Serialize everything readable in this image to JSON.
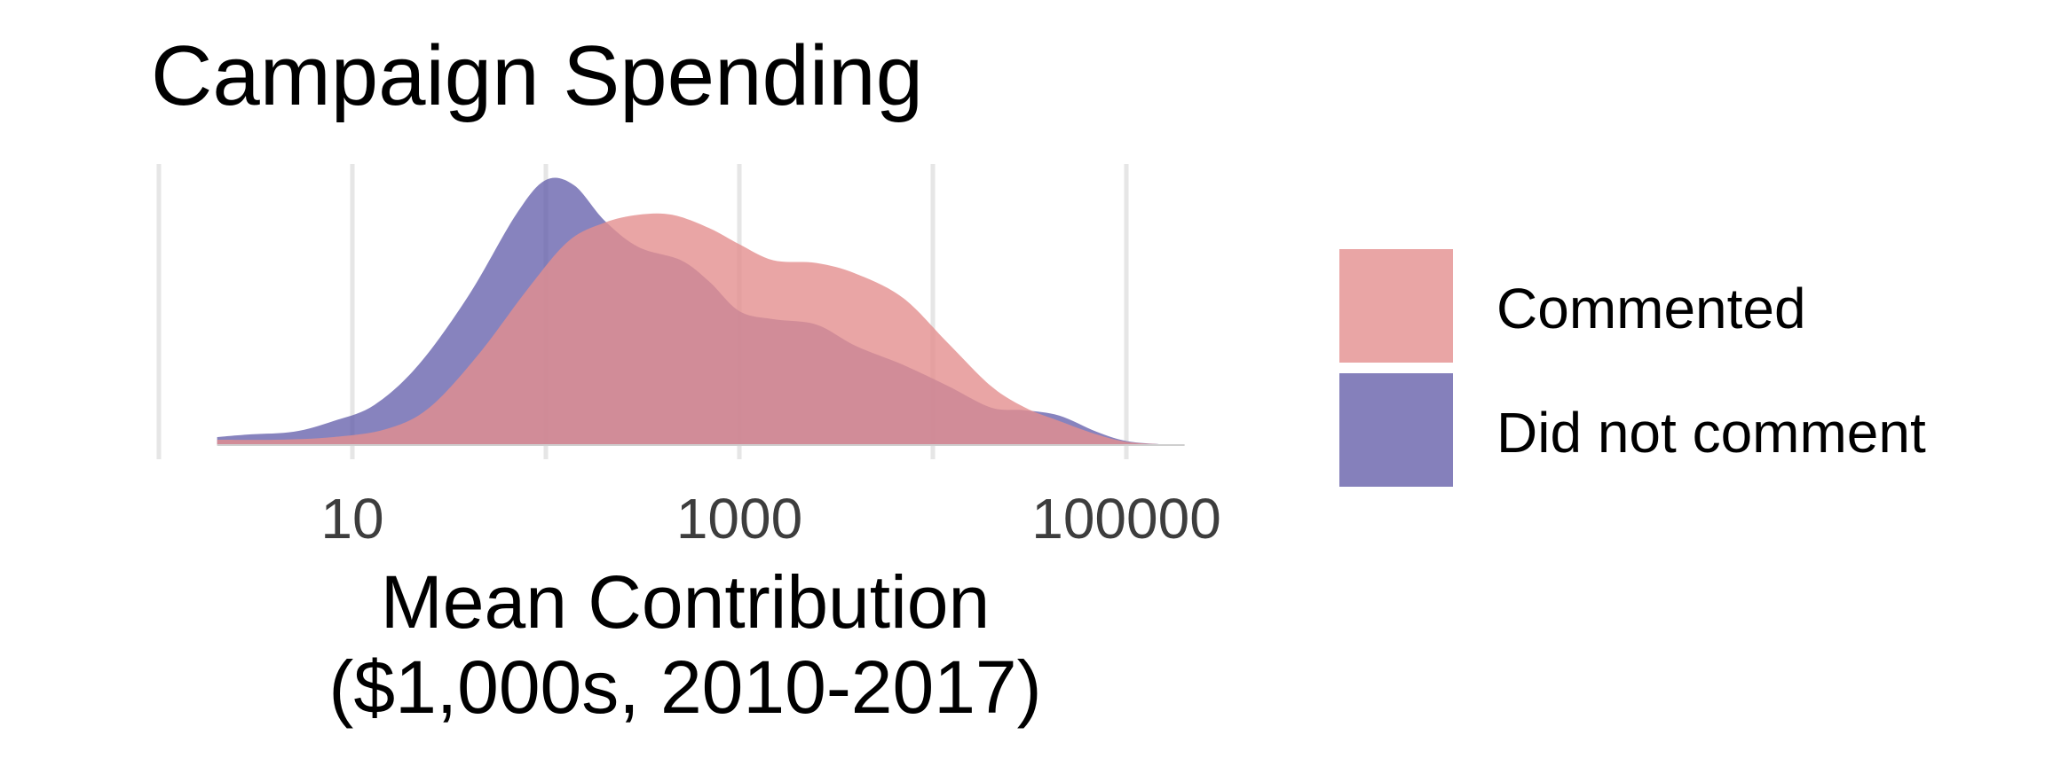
{
  "chart_data": {
    "type": "area",
    "title": "Campaign Spending",
    "xlabel": [
      "Mean Contribution",
      "($1,000s, 2010-2017)"
    ],
    "ylabel": "",
    "xscale": "log10",
    "xlim": [
      1,
      200000
    ],
    "ylim": [
      0,
      1
    ],
    "xticks": [
      {
        "value": 10,
        "label": "10"
      },
      {
        "value": 1000,
        "label": "1000"
      },
      {
        "value": 100000,
        "label": "100000"
      }
    ],
    "xgrid": [
      1,
      10,
      100,
      1000,
      10000,
      100000
    ],
    "grid": "vertical",
    "legend": {
      "position": "right"
    },
    "series": [
      {
        "name": "Did not comment",
        "color": "#5f5aa8",
        "opacity": 0.75,
        "points": [
          [
            2,
            0.03
          ],
          [
            3,
            0.04
          ],
          [
            5,
            0.05
          ],
          [
            8,
            0.09
          ],
          [
            13,
            0.15
          ],
          [
            22,
            0.3
          ],
          [
            40,
            0.56
          ],
          [
            70,
            0.86
          ],
          [
            100,
            0.99
          ],
          [
            140,
            0.97
          ],
          [
            200,
            0.84
          ],
          [
            300,
            0.74
          ],
          [
            500,
            0.69
          ],
          [
            700,
            0.61
          ],
          [
            1000,
            0.5
          ],
          [
            1500,
            0.47
          ],
          [
            2500,
            0.45
          ],
          [
            4000,
            0.37
          ],
          [
            7000,
            0.3
          ],
          [
            12000,
            0.22
          ],
          [
            20000,
            0.14
          ],
          [
            30000,
            0.13
          ],
          [
            45000,
            0.11
          ],
          [
            70000,
            0.05
          ],
          [
            100000,
            0.015
          ],
          [
            150000,
            0.003
          ],
          [
            200000,
            0
          ]
        ]
      },
      {
        "name": "Commented",
        "color": "#e38f8f",
        "opacity": 0.8,
        "points": [
          [
            2,
            0.02
          ],
          [
            4,
            0.02
          ],
          [
            8,
            0.03
          ],
          [
            15,
            0.06
          ],
          [
            25,
            0.14
          ],
          [
            45,
            0.34
          ],
          [
            80,
            0.58
          ],
          [
            130,
            0.76
          ],
          [
            200,
            0.83
          ],
          [
            300,
            0.86
          ],
          [
            450,
            0.86
          ],
          [
            700,
            0.81
          ],
          [
            1000,
            0.75
          ],
          [
            1500,
            0.69
          ],
          [
            2500,
            0.68
          ],
          [
            4000,
            0.64
          ],
          [
            7000,
            0.55
          ],
          [
            12000,
            0.38
          ],
          [
            20000,
            0.22
          ],
          [
            30000,
            0.14
          ],
          [
            45000,
            0.09
          ],
          [
            70000,
            0.04
          ],
          [
            100000,
            0.012
          ],
          [
            150000,
            0.003
          ],
          [
            200000,
            0
          ]
        ]
      }
    ],
    "legend_entries": [
      {
        "label": "Commented",
        "color": "#e9a5a5"
      },
      {
        "label": "Did not comment",
        "color": "#8580bb"
      }
    ]
  }
}
